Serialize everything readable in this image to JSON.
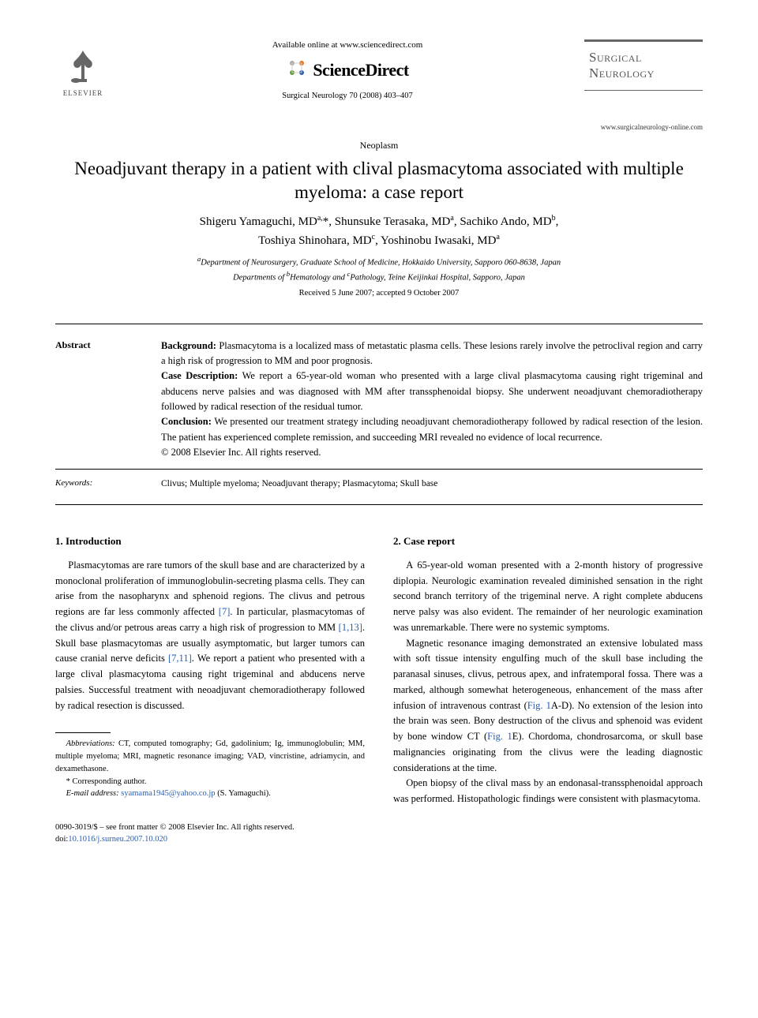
{
  "header": {
    "publisher_name": "ELSEVIER",
    "available_line": "Available online at www.sciencedirect.com",
    "sciencedirect_name": "ScienceDirect",
    "journal_ref": "Surgical Neurology 70 (2008) 403–407",
    "journal_title": "Surgical Neurology",
    "journal_url": "www.surgicalneurology-online.com",
    "section_tag": "Neoplasm"
  },
  "title": "Neoadjuvant therapy in a patient with clival plasmacytoma associated with multiple myeloma: a case report",
  "authors_html": "Shigeru Yamaguchi, MD<sup>a,</sup>*, Shunsuke Terasaka, MD<sup>a</sup>, Sachiko Ando, MD<sup>b</sup>,<br>Toshiya Shinohara, MD<sup>c</sup>, Yoshinobu Iwasaki, MD<sup>a</sup>",
  "affiliations_html": "<sup>a</sup>Department of Neurosurgery, Graduate School of Medicine, Hokkaido University, Sapporo 060-8638, Japan<br>Departments of <sup>b</sup>Hematology and <sup>c</sup>Pathology, Teine Keijinkai Hospital, Sapporo, Japan",
  "dates": "Received 5 June 2007; accepted 9 October 2007",
  "abstract": {
    "label": "Abstract",
    "background_label": "Background:",
    "background": "Plasmacytoma is a localized mass of metastatic plasma cells. These lesions rarely involve the petroclival region and carry a high risk of progression to MM and poor prognosis.",
    "case_label": "Case Description:",
    "case": "We report a 65-year-old woman who presented with a large clival plasmacytoma causing right trigeminal and abducens nerve palsies and was diagnosed with MM after transsphenoidal biopsy. She underwent neoadjuvant chemoradiotherapy followed by radical resection of the residual tumor.",
    "conclusion_label": "Conclusion:",
    "conclusion": "We presented our treatment strategy including neoadjuvant chemoradiotherapy followed by radical resection of the lesion. The patient has experienced complete remission, and succeeding MRI revealed no evidence of local recurrence.",
    "copyright": "© 2008 Elsevier Inc. All rights reserved."
  },
  "keywords": {
    "label": "Keywords:",
    "content": "Clivus; Multiple myeloma; Neoadjuvant therapy; Plasmacytoma; Skull base"
  },
  "sections": {
    "intro_head": "1. Introduction",
    "intro_p1a": "Plasmacytomas are rare tumors of the skull base and are characterized by a monoclonal proliferation of immuno­globulin-secreting plasma cells. They can arise from the nasopharynx and sphenoid regions. The clivus and petrous regions are far less commonly affected ",
    "intro_cite1": "[7]",
    "intro_p1b": ". In particular, plasmacytomas of the clivus and/or petrous areas carry a high risk of progression to MM ",
    "intro_cite2": "[1,13]",
    "intro_p1c": ". Skull base plasmacytomas are usually asymptomatic, but larger tumors can cause cranial nerve deficits ",
    "intro_cite3": "[7,11]",
    "intro_p1d": ". We report a patient who presented with a large clival plasmacytoma causing right trigeminal and abducens nerve palsies. Successful treatment with neoadjuvant chemoradiotherapy followed by radical resection is discussed.",
    "case_head": "2. Case report",
    "case_p1": "A 65-year-old woman presented with a 2-month history of progressive diplopia. Neurologic examination revealed diminished sensation in the right second branch territory of the trigeminal nerve. A right complete abducens nerve palsy was also evident. The remainder of her neurologic examina­tion was unremarkable. There were no systemic symptoms.",
    "case_p2a": "Magnetic resonance imaging demonstrated an extensive lobulated mass with soft tissue intensity engulfing much of the skull base including the paranasal sinuses, clivus, petrous apex, and infratemporal fossa. There was a marked, although somewhat heterogeneous, enhancement of the mass after infusion of intravenous contrast (",
    "case_fig1": "Fig. 1",
    "case_p2b": "A-D). No extension of the lesion into the brain was seen. Bony destruction of the clivus and sphenoid was evident by bone window CT (",
    "case_fig2": "Fig. 1",
    "case_p2c": "E). Chordoma, chondrosarcoma, or skull base malignancies originating from the clivus were the leading diagnostic considerations at the time.",
    "case_p3": "Open biopsy of the clival mass by an endonasal-transsphenoidal approach was performed. Histopathologic findings were consistent with plasmacytoma."
  },
  "footnotes": {
    "abbrev_label": "Abbreviations:",
    "abbrev": "CT, computed tomography; Gd, gadolinium; Ig, immunoglobulin; MM, multiple myeloma; MRI, magnetic resonance imaging; VAD, vincristine, adriamycin, and dexamethasone.",
    "corr": "* Corresponding author.",
    "email_label": "E-mail address:",
    "email": "syamama1945@yahoo.co.jp",
    "email_suffix": "(S. Yamaguchi)."
  },
  "footer": {
    "left": "0090-3019/$ – see front matter © 2008 Elsevier Inc. All rights reserved.",
    "doi_label": "doi:",
    "doi": "10.1016/j.surneu.2007.10.020"
  },
  "colors": {
    "link": "#2a5db0",
    "rule": "#000000",
    "journal_box_border": "#666666",
    "journal_box_text": "#555555",
    "elsevier_orange": "#e87722"
  }
}
